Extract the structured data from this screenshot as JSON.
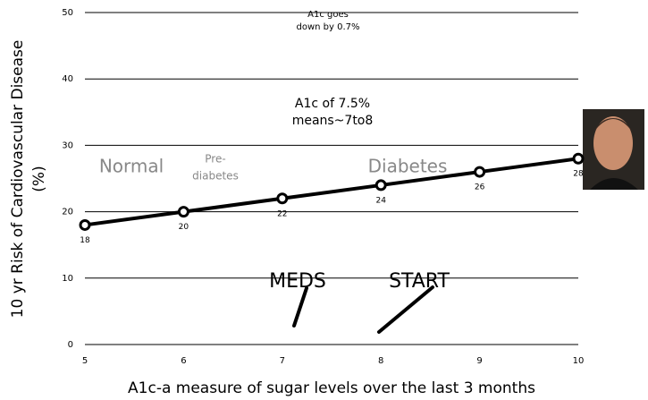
{
  "chart_data": {
    "type": "line",
    "x": [
      5,
      6,
      7,
      8,
      9,
      10
    ],
    "series": [
      {
        "color": "#000000",
        "values": [
          18,
          20,
          22,
          24,
          26,
          28
        ]
      }
    ],
    "xlim": [
      5,
      10
    ],
    "xticks": [
      5,
      6,
      7,
      8,
      9,
      10
    ],
    "ylim": [
      0,
      50
    ],
    "yticks": [
      0,
      10,
      20,
      30,
      40,
      50
    ],
    "grid": true,
    "xlabel": "A1c-a measure of sugar levels over the last 3 months",
    "ylabel": [
      "10 yr Risk of Cardiovascular Disease",
      "(%)"
    ],
    "annotations": [
      {
        "lines": [
          "A1c goes",
          "down by 0.7%"
        ]
      },
      {
        "lines": [
          "A1c of 7.5%",
          "means~7to8"
        ]
      },
      {
        "lines": [
          "Normal"
        ]
      },
      {
        "lines": [
          "Pre-",
          "diabetes"
        ]
      },
      {
        "lines": [
          "Diabetes"
        ]
      },
      {
        "lines": [
          "MEDS"
        ]
      },
      {
        "lines": [
          "START"
        ]
      }
    ]
  }
}
